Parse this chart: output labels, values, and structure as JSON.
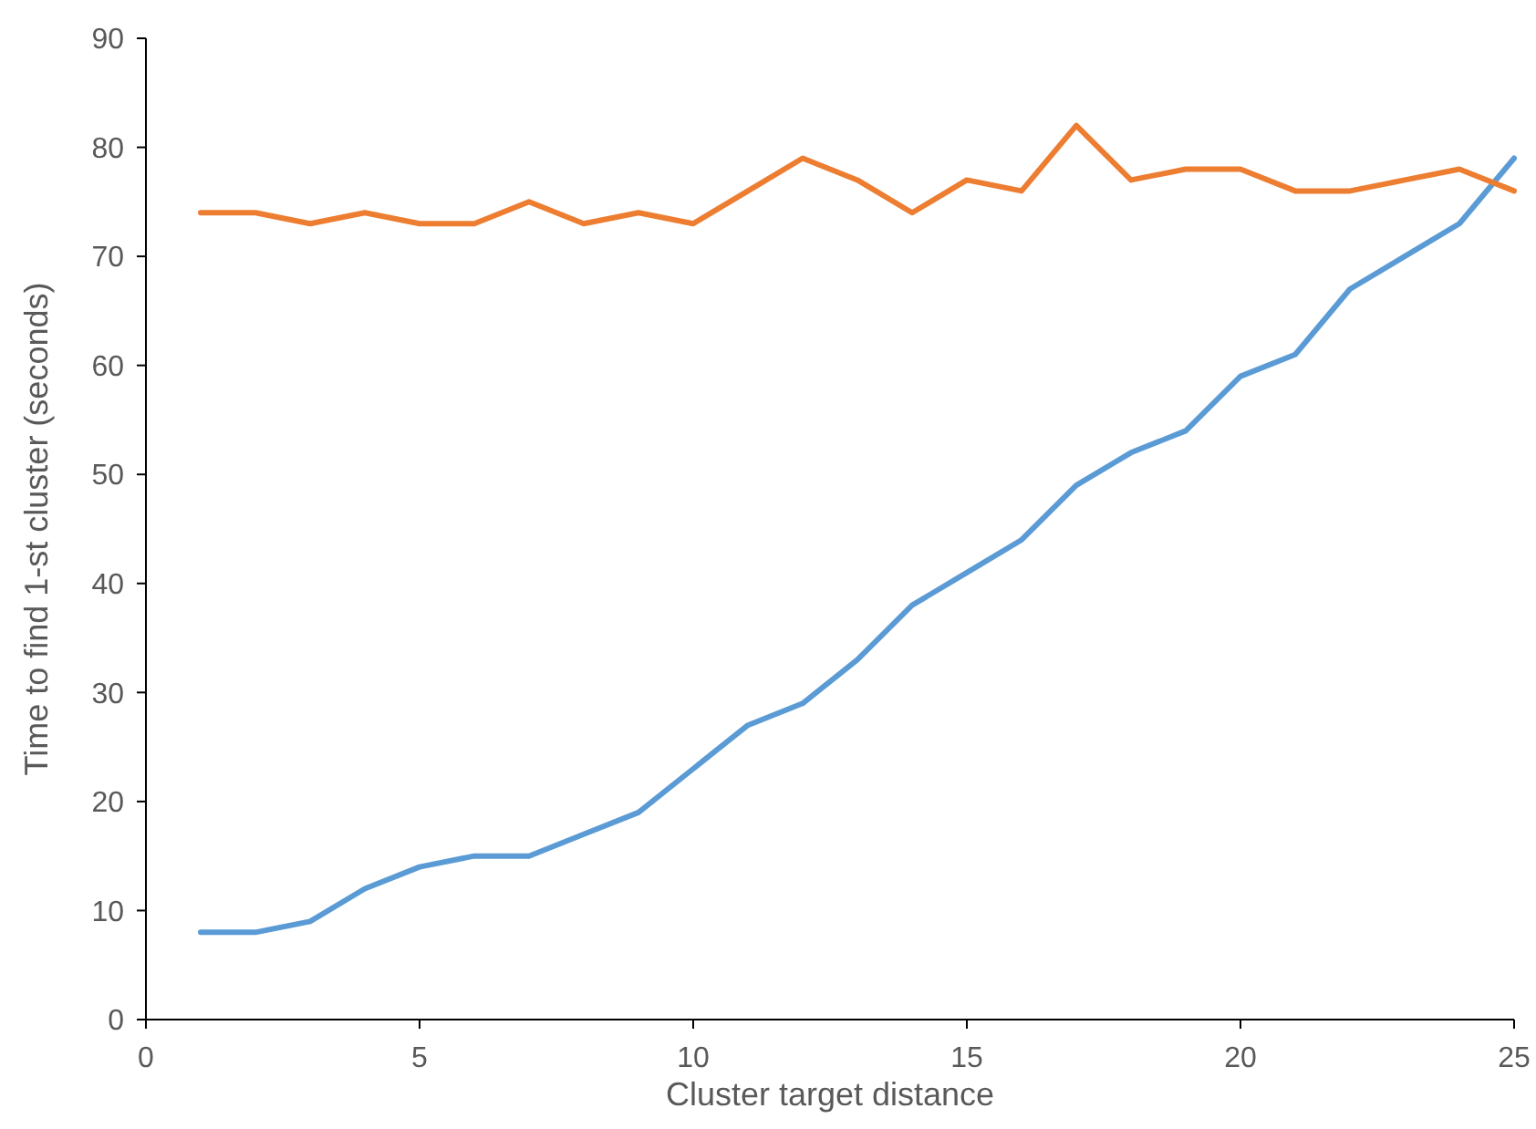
{
  "chart_data": {
    "type": "line",
    "xlabel": "Cluster target distance",
    "ylabel": "Time to find 1-st cluster (seconds)",
    "x": [
      1,
      2,
      3,
      4,
      5,
      6,
      7,
      8,
      9,
      10,
      11,
      12,
      13,
      14,
      15,
      16,
      17,
      18,
      19,
      20,
      21,
      22,
      23,
      24,
      25
    ],
    "series": [
      {
        "color": "#5b9bd5",
        "values": [
          8,
          8,
          9,
          12,
          14,
          15,
          15,
          17,
          19,
          23,
          27,
          29,
          33,
          38,
          41,
          44,
          49,
          52,
          54,
          59,
          61,
          67,
          70,
          73,
          79
        ]
      },
      {
        "color": "#ed7d31",
        "values": [
          74,
          74,
          73,
          74,
          73,
          73,
          75,
          73,
          74,
          73,
          76,
          79,
          77,
          74,
          77,
          76,
          82,
          77,
          78,
          78,
          76,
          76,
          77,
          78,
          76
        ]
      }
    ],
    "xlim": [
      0,
      25
    ],
    "xticks": [
      0,
      5,
      10,
      15,
      20,
      25
    ],
    "ylim": [
      0,
      90
    ],
    "yticks": [
      0,
      10,
      20,
      30,
      40,
      50,
      60,
      70,
      80,
      90
    ],
    "grid": false,
    "marker": "none",
    "line_style": "solid"
  }
}
